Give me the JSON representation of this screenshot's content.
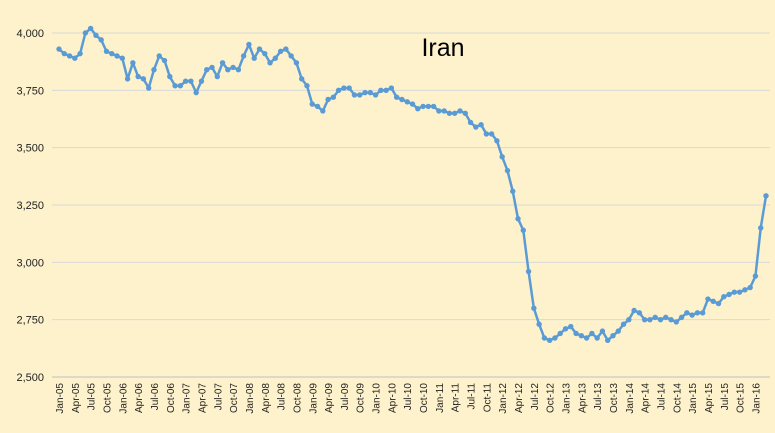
{
  "chart_data": {
    "type": "line",
    "title": "Iran",
    "xlabel": "",
    "ylabel": "",
    "ylim": [
      2500,
      4000
    ],
    "y_ticks": [
      "2,500",
      "2,750",
      "3,000",
      "3,250",
      "3,500",
      "3,750",
      "4,000"
    ],
    "y_tick_values": [
      2500,
      2750,
      3000,
      3250,
      3500,
      3750,
      4000
    ],
    "grid": "horizontal",
    "colors": {
      "line": "#5b9bd5",
      "background": "#fdf2cc",
      "grid": "#d9d9d9"
    },
    "x_tick_labels": [
      "Jan-05",
      "Apr-05",
      "Jul-05",
      "Oct-05",
      "Jan-06",
      "Apr-06",
      "Jul-06",
      "Oct-06",
      "Jan-07",
      "Apr-07",
      "Jul-07",
      "Oct-07",
      "Jan-08",
      "Apr-08",
      "Jul-08",
      "Oct-08",
      "Jan-09",
      "Apr-09",
      "Jul-09",
      "Oct-09",
      "Jan-10",
      "Apr-10",
      "Jul-10",
      "Oct-10",
      "Jan-11",
      "Apr-11",
      "Jul-11",
      "Oct-11",
      "Jan-12",
      "Apr-12",
      "Jul-12",
      "Oct-12",
      "Jan-13",
      "Apr-13",
      "Jul-13",
      "Oct-13",
      "Jan-14",
      "Apr-14",
      "Jul-14",
      "Oct-14",
      "Jan-15",
      "Apr-15",
      "Jul-15",
      "Oct-15",
      "Jan-16"
    ],
    "series": [
      {
        "values": [
          3930,
          3910,
          3900,
          3890,
          3910,
          4000,
          4020,
          3990,
          3970,
          3920,
          3910,
          3900,
          3890,
          3800,
          3870,
          3810,
          3800,
          3760,
          3840,
          3900,
          3880,
          3810,
          3770,
          3770,
          3790,
          3790,
          3740,
          3790,
          3840,
          3850,
          3810,
          3870,
          3840,
          3850,
          3840,
          3900,
          3950,
          3890,
          3930,
          3910,
          3870,
          3890,
          3920,
          3930,
          3900,
          3870,
          3800,
          3770,
          3690,
          3680,
          3660,
          3710,
          3720,
          3750,
          3760,
          3760,
          3730,
          3730,
          3740,
          3740,
          3730,
          3750,
          3750,
          3760,
          3720,
          3710,
          3700,
          3690,
          3670,
          3680,
          3680,
          3680,
          3660,
          3660,
          3650,
          3650,
          3660,
          3650,
          3610,
          3590,
          3600,
          3560,
          3560,
          3530,
          3460,
          3400,
          3310,
          3190,
          3140,
          2960,
          2800,
          2730,
          2670,
          2660,
          2670,
          2690,
          2710,
          2720,
          2690,
          2680,
          2670,
          2690,
          2670,
          2700,
          2660,
          2680,
          2700,
          2730,
          2750,
          2790,
          2780,
          2750,
          2750,
          2760,
          2750,
          2760,
          2750,
          2740,
          2760,
          2780,
          2770,
          2780,
          2780,
          2840,
          2830,
          2820,
          2850,
          2860,
          2870,
          2870,
          2880,
          2890,
          2940,
          3150,
          3290
        ]
      }
    ]
  }
}
